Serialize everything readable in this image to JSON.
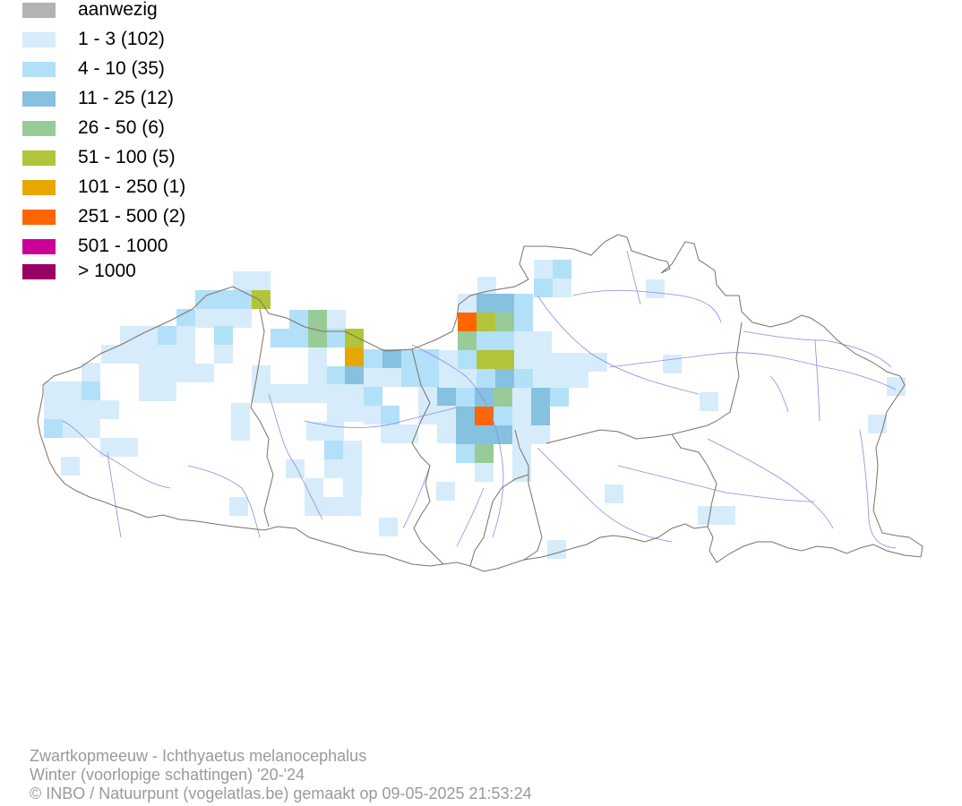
{
  "legend": {
    "items": [
      {
        "label": "aanwezig",
        "color": "#b3b3b3"
      },
      {
        "label": "1 - 3 (102)",
        "color": "#d6ecfa"
      },
      {
        "label": "4 - 10 (35)",
        "color": "#b2e0f8"
      },
      {
        "label": "11 - 25 (12)",
        "color": "#86c1e0"
      },
      {
        "label": "26 - 50 (6)",
        "color": "#98cb96"
      },
      {
        "label": "51 - 100 (5)",
        "color": "#b2c43a"
      },
      {
        "label": "101 - 250 (1)",
        "color": "#e6a800"
      },
      {
        "label": "251 - 500 (2)",
        "color": "#ff6600"
      },
      {
        "label": "501 - 1000",
        "color": "#cc0099"
      },
      {
        "label": "> 1000",
        "color": "#990066"
      }
    ]
  },
  "footer": {
    "line1": "Zwartkopmeeuw - Ichthyaetus melanocephalus",
    "line2": "Winter (voorlopige schattingen) '20-'24",
    "line3": "© INBO / Natuurpunt (vogelatlas.be) gemaakt op 09-05-2025 21:53:24"
  },
  "map": {
    "border_color": "#7d7166",
    "river_color": "#8a8ae6"
  }
}
